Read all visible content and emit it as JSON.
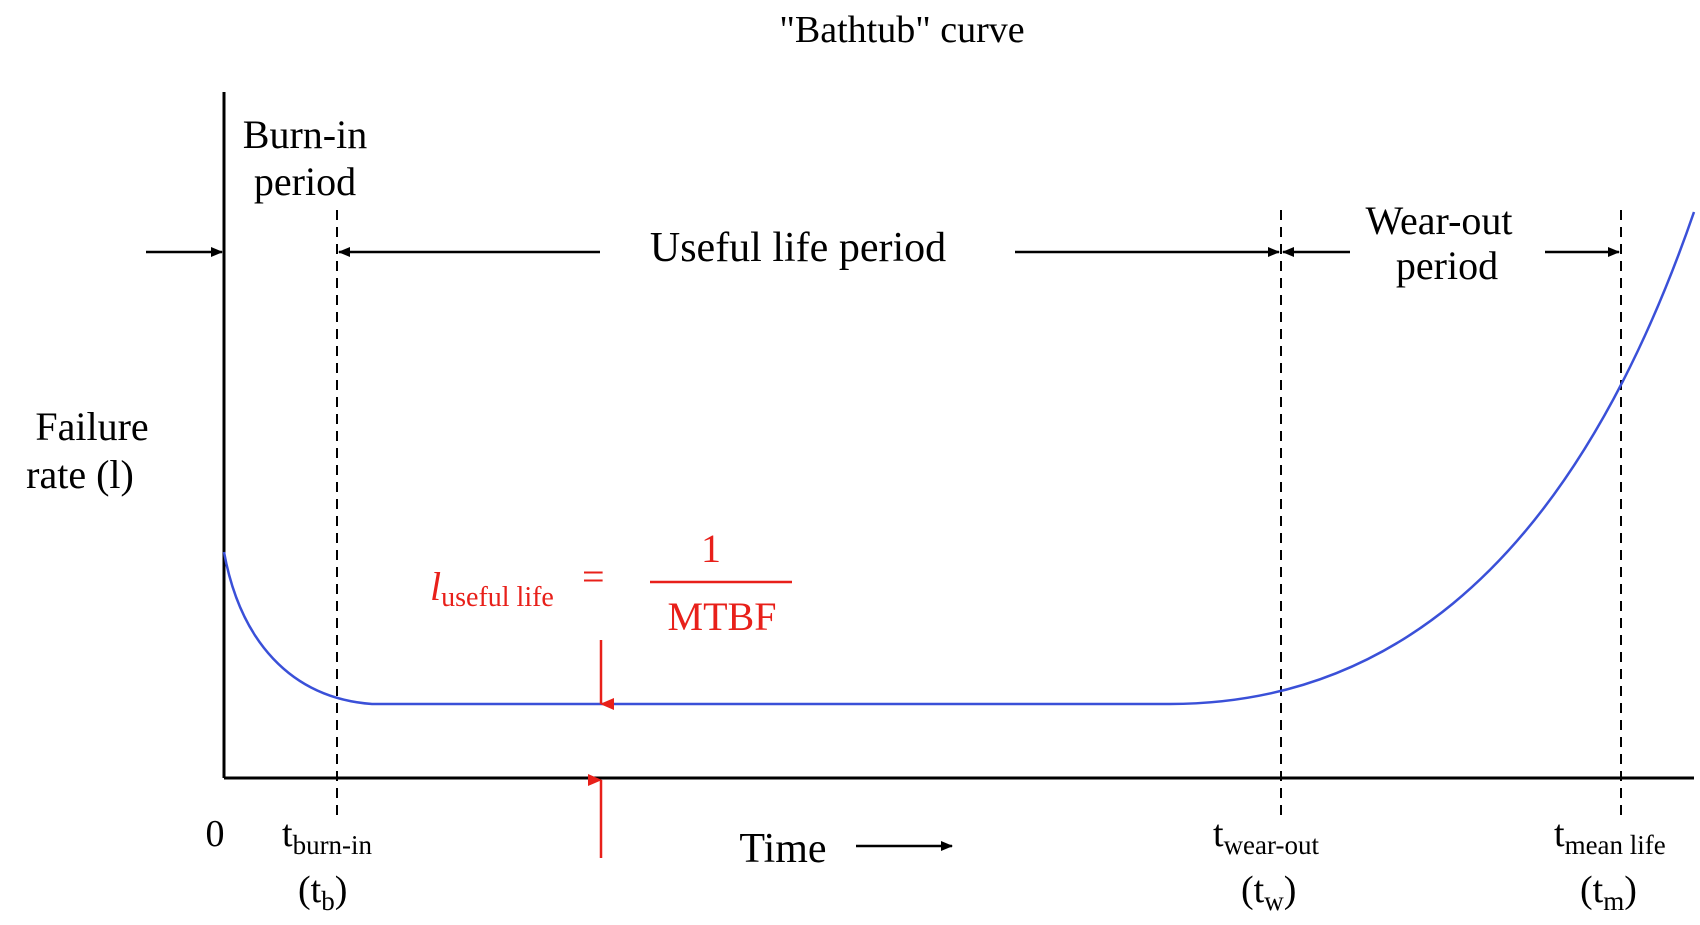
{
  "title": "\"Bathtub\" curve",
  "y_axis_label": {
    "line1": "Failure",
    "line2": "rate (l)"
  },
  "x_axis_label": "Time",
  "origin_label": "0",
  "periods": {
    "burn_in": {
      "line1": "Burn-in",
      "line2": "period"
    },
    "useful_life": "Useful life period",
    "wear_out": {
      "line1": "Wear-out",
      "line2": "period"
    }
  },
  "markers": {
    "burn_in": {
      "t": "t",
      "sub": "burn-in",
      "paren_t": "(t",
      "paren_sub": "b",
      "paren_close": ")"
    },
    "wear_out": {
      "t": "t",
      "sub": "wear-out",
      "paren_t": "(t",
      "paren_sub": "w",
      "paren_close": ")"
    },
    "mean_life": {
      "t": "t",
      "sub": "mean life",
      "paren_t": "(t",
      "paren_sub": "m",
      "paren_close": ")"
    }
  },
  "formula": {
    "lhs": "l",
    "lhs_sub": "useful life",
    "equals": "=",
    "numerator": "1",
    "denominator": "MTBF"
  },
  "colors": {
    "curve": "#3a50d8",
    "annotation": "#e8201a",
    "axis": "#000000"
  }
}
